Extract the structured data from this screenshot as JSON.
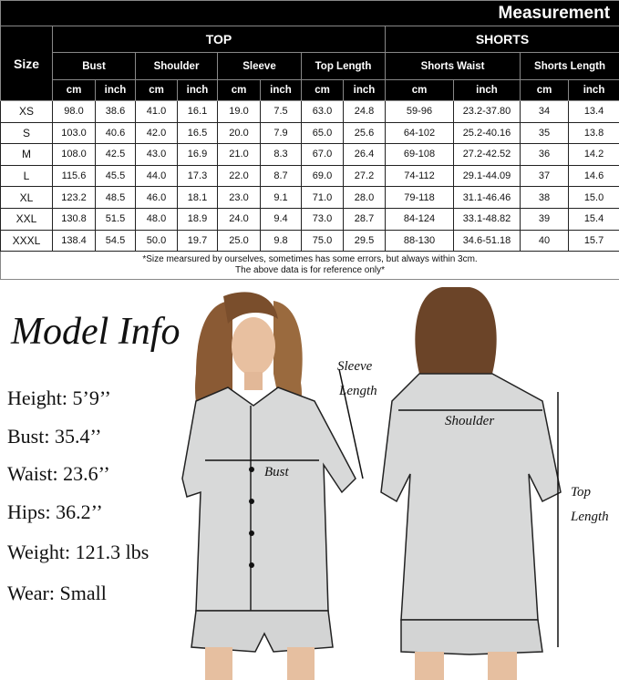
{
  "title": "Measurement",
  "groups": {
    "size": "Size",
    "top": "TOP",
    "shorts": "SHORTS"
  },
  "measures": [
    "Bust",
    "Shoulder",
    "Sleeve",
    "Top Length",
    "Shorts Waist",
    "Shorts Length"
  ],
  "units": {
    "cm": "cm",
    "inch": "inch"
  },
  "rows": [
    [
      "XS",
      "98.0",
      "38.6",
      "41.0",
      "16.1",
      "19.0",
      "7.5",
      "63.0",
      "24.8",
      "59-96",
      "23.2-37.80",
      "34",
      "13.4"
    ],
    [
      "S",
      "103.0",
      "40.6",
      "42.0",
      "16.5",
      "20.0",
      "7.9",
      "65.0",
      "25.6",
      "64-102",
      "25.2-40.16",
      "35",
      "13.8"
    ],
    [
      "M",
      "108.0",
      "42.5",
      "43.0",
      "16.9",
      "21.0",
      "8.3",
      "67.0",
      "26.4",
      "69-108",
      "27.2-42.52",
      "36",
      "14.2"
    ],
    [
      "L",
      "115.6",
      "45.5",
      "44.0",
      "17.3",
      "22.0",
      "8.7",
      "69.0",
      "27.2",
      "74-112",
      "29.1-44.09",
      "37",
      "14.6"
    ],
    [
      "XL",
      "123.2",
      "48.5",
      "46.0",
      "18.1",
      "23.0",
      "9.1",
      "71.0",
      "28.0",
      "79-118",
      "31.1-46.46",
      "38",
      "15.0"
    ],
    [
      "XXL",
      "130.8",
      "51.5",
      "48.0",
      "18.9",
      "24.0",
      "9.4",
      "73.0",
      "28.7",
      "84-124",
      "33.1-48.82",
      "39",
      "15.4"
    ],
    [
      "XXXL",
      "138.4",
      "54.5",
      "50.0",
      "19.7",
      "25.0",
      "9.8",
      "75.0",
      "29.5",
      "88-130",
      "34.6-51.18",
      "40",
      "15.7"
    ]
  ],
  "note": [
    "*Size mearsured by ourselves, sometimes has some errors, but always within 3cm.",
    "The above data is for reference only*"
  ],
  "model": {
    "title": "Model Info",
    "lines": [
      "Height: 5’9’’",
      "Bust: 35.4’’",
      "Waist: 23.6’’",
      "Hips: 36.2’’",
      "Weight: 121.3 lbs",
      "Wear: Small"
    ]
  },
  "photo_labels": {
    "sleeve": [
      "Sleeve",
      "Length"
    ],
    "bust": "Bust",
    "shoulder": "Shoulder",
    "top_length": [
      "Top",
      "Length"
    ]
  }
}
